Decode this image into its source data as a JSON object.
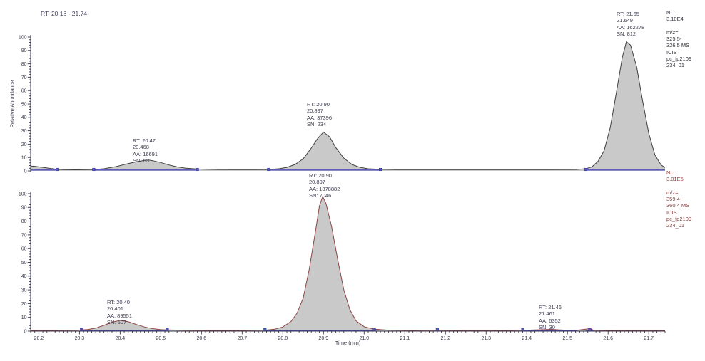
{
  "header": {
    "rt_range": "RT: 20.18 - 21.74"
  },
  "colors": {
    "trace_top": "#3f3f3f",
    "trace_bottom": "#8c4444",
    "peak_fill": "#c9c9c9",
    "baseline_blue": "#4d4dbb",
    "marker_blue": "#5a5ac8",
    "axis": "#33334a",
    "tick_label": "#3a3a4a"
  },
  "axes": {
    "x": {
      "title": "Time (min)",
      "min": 20.18,
      "max": 21.74,
      "tick_start": 20.2,
      "tick_step": 0.1,
      "tick_labels": [
        "20.2",
        "20.3",
        "20.4",
        "20.5",
        "20.6",
        "20.7",
        "20.8",
        "20.9",
        "21.0",
        "21.1",
        "21.2",
        "21.3",
        "21.4",
        "21.5",
        "21.6",
        "21.7"
      ]
    },
    "y": {
      "title": "Relative Abundance",
      "min": 0,
      "max": 100,
      "tick_labels": [
        "0",
        "10",
        "20",
        "30",
        "40",
        "50",
        "60",
        "70",
        "80",
        "90",
        "100"
      ]
    }
  },
  "chart_data": [
    {
      "type": "area",
      "panel": "top",
      "xlabel": "Time (min)",
      "ylabel": "Relative Abundance",
      "xlim": [
        20.18,
        21.74
      ],
      "ylim": [
        0,
        100
      ],
      "nl_value": "3.10E4",
      "mz_range": "325.5-326.5",
      "scan": "MS ICIS",
      "file": "pc_fp2109234_01",
      "nl_label": "NL:\n3.10E4\n\nm/z=\n325.5-\n326.5 MS\nICIS\npc_fp2109\n234_01",
      "peaks": [
        {
          "rt": 20.468,
          "apex_pct": 8.1,
          "aa": 16691,
          "sn": 63,
          "label": "RT: 20.47\n20.468\nAA: 16691\nSN: 63"
        },
        {
          "rt": 20.897,
          "apex_pct": 29,
          "aa": 37396,
          "sn": 234,
          "label": "RT: 20.90\n20.897\nAA: 37396\nSN: 234"
        },
        {
          "rt": 21.649,
          "apex_pct": 96.5,
          "aa": 162278,
          "sn": 812,
          "label": "RT: 21.65\n21.649\nAA: 162278\nSN: 812"
        }
      ],
      "points": [
        [
          20.18,
          3.6
        ],
        [
          20.19,
          3.4
        ],
        [
          20.21,
          2.6
        ],
        [
          20.23,
          1.8
        ],
        [
          20.245,
          1.1
        ],
        [
          20.26,
          0.9
        ],
        [
          20.29,
          0.8
        ],
        [
          20.32,
          0.9
        ],
        [
          20.335,
          1.0
        ],
        [
          20.36,
          1.6
        ],
        [
          20.39,
          3.2
        ],
        [
          20.42,
          5.5
        ],
        [
          20.44,
          6.8
        ],
        [
          20.46,
          7.8
        ],
        [
          20.47,
          8.1
        ],
        [
          20.48,
          7.6
        ],
        [
          20.5,
          6.2
        ],
        [
          20.52,
          4.4
        ],
        [
          20.54,
          3.0
        ],
        [
          20.56,
          2.1
        ],
        [
          20.575,
          1.7
        ],
        [
          20.59,
          1.4
        ],
        [
          20.61,
          1.2
        ],
        [
          20.64,
          1.0
        ],
        [
          20.68,
          0.9
        ],
        [
          20.72,
          0.9
        ],
        [
          20.765,
          1.0
        ],
        [
          20.79,
          1.6
        ],
        [
          20.81,
          2.6
        ],
        [
          20.83,
          4.8
        ],
        [
          20.85,
          9.0
        ],
        [
          20.87,
          17.0
        ],
        [
          20.885,
          24.0
        ],
        [
          20.9,
          29.0
        ],
        [
          20.915,
          25.5
        ],
        [
          20.93,
          17.5
        ],
        [
          20.95,
          9.5
        ],
        [
          20.97,
          4.8
        ],
        [
          20.99,
          2.6
        ],
        [
          21.01,
          1.6
        ],
        [
          21.04,
          1.1
        ],
        [
          21.08,
          0.9
        ],
        [
          21.15,
          0.9
        ],
        [
          21.25,
          0.9
        ],
        [
          21.35,
          0.9
        ],
        [
          21.45,
          0.9
        ],
        [
          21.52,
          1.0
        ],
        [
          21.545,
          1.6
        ],
        [
          21.56,
          3.0
        ],
        [
          21.575,
          7.0
        ],
        [
          21.59,
          15.0
        ],
        [
          21.605,
          32.0
        ],
        [
          21.62,
          58.0
        ],
        [
          21.635,
          85.0
        ],
        [
          21.645,
          96.5
        ],
        [
          21.655,
          94.0
        ],
        [
          21.67,
          78.0
        ],
        [
          21.685,
          52.0
        ],
        [
          21.7,
          28.0
        ],
        [
          21.715,
          12.0
        ],
        [
          21.73,
          4.5
        ],
        [
          21.74,
          2.5
        ]
      ],
      "baseline_segments": [
        [
          20.18,
          20.245
        ],
        [
          20.335,
          20.59
        ],
        [
          20.765,
          21.04
        ],
        [
          21.545,
          21.74
        ]
      ],
      "markers": [
        20.245,
        20.335,
        20.59,
        20.765,
        21.04,
        21.545
      ]
    },
    {
      "type": "area",
      "panel": "bottom",
      "xlabel": "Time (min)",
      "ylabel": "Relative Abundance",
      "xlim": [
        20.18,
        21.74
      ],
      "ylim": [
        0,
        100
      ],
      "nl_value": "3.01E5",
      "mz_range": "359.4-360.4",
      "scan": "MS ICIS",
      "file": "pc_fp2109234_01",
      "nl_label": "NL:\n3.01E5\n\nm/z=\n359.4-\n360.4 MS\nICIS\npc_fp2109\n234_01",
      "peaks": [
        {
          "rt": 20.401,
          "apex_pct": 7.8,
          "aa": 89551,
          "sn": 507,
          "label": "RT: 20.40\n20.401\nAA: 89551\nSN: 507"
        },
        {
          "rt": 20.897,
          "apex_pct": 98,
          "aa": 1378882,
          "sn": 7046,
          "label": "RT: 20.90\n20.897\nAA: 1378882\nSN: 7046"
        },
        {
          "rt": 21.461,
          "apex_pct": 1.3,
          "aa": 6352,
          "sn": 30,
          "label": "RT: 21.46\n21.461\nAA: 6352\nSN: 30"
        }
      ],
      "points": [
        [
          20.18,
          0.5
        ],
        [
          20.24,
          0.5
        ],
        [
          20.295,
          0.6
        ],
        [
          20.305,
          0.9
        ],
        [
          20.32,
          1.2
        ],
        [
          20.34,
          2.2
        ],
        [
          20.36,
          4.2
        ],
        [
          20.38,
          6.5
        ],
        [
          20.4,
          7.8
        ],
        [
          20.42,
          6.8
        ],
        [
          20.44,
          4.8
        ],
        [
          20.46,
          3.0
        ],
        [
          20.48,
          1.8
        ],
        [
          20.5,
          1.1
        ],
        [
          20.516,
          0.9
        ],
        [
          20.55,
          0.6
        ],
        [
          20.62,
          0.5
        ],
        [
          20.7,
          0.5
        ],
        [
          20.756,
          0.7
        ],
        [
          20.78,
          1.4
        ],
        [
          20.8,
          3.0
        ],
        [
          20.82,
          7.0
        ],
        [
          20.835,
          13.0
        ],
        [
          20.85,
          24.0
        ],
        [
          20.865,
          45.0
        ],
        [
          20.88,
          72.0
        ],
        [
          20.89,
          91.0
        ],
        [
          20.898,
          98.0
        ],
        [
          20.906,
          93.0
        ],
        [
          20.92,
          76.0
        ],
        [
          20.935,
          52.0
        ],
        [
          20.95,
          30.0
        ],
        [
          20.965,
          15.5
        ],
        [
          20.98,
          7.5
        ],
        [
          21.0,
          3.2
        ],
        [
          21.025,
          1.4
        ],
        [
          21.06,
          0.7
        ],
        [
          21.12,
          0.5
        ],
        [
          21.18,
          0.6
        ],
        [
          21.25,
          0.4
        ],
        [
          21.32,
          0.4
        ],
        [
          21.39,
          0.6
        ],
        [
          21.42,
          0.9
        ],
        [
          21.46,
          1.3
        ],
        [
          21.49,
          0.8
        ],
        [
          21.52,
          0.5
        ],
        [
          21.555,
          1.8
        ],
        [
          21.565,
          0.6
        ],
        [
          21.62,
          0.4
        ],
        [
          21.68,
          0.4
        ],
        [
          21.74,
          0.4
        ]
      ],
      "baseline_segments": [
        [
          20.305,
          20.516
        ],
        [
          20.756,
          21.025
        ],
        [
          21.39,
          21.52
        ],
        [
          21.545,
          21.565
        ]
      ],
      "markers": [
        20.305,
        20.516,
        20.756,
        21.025,
        21.18,
        21.39,
        21.555
      ]
    }
  ]
}
